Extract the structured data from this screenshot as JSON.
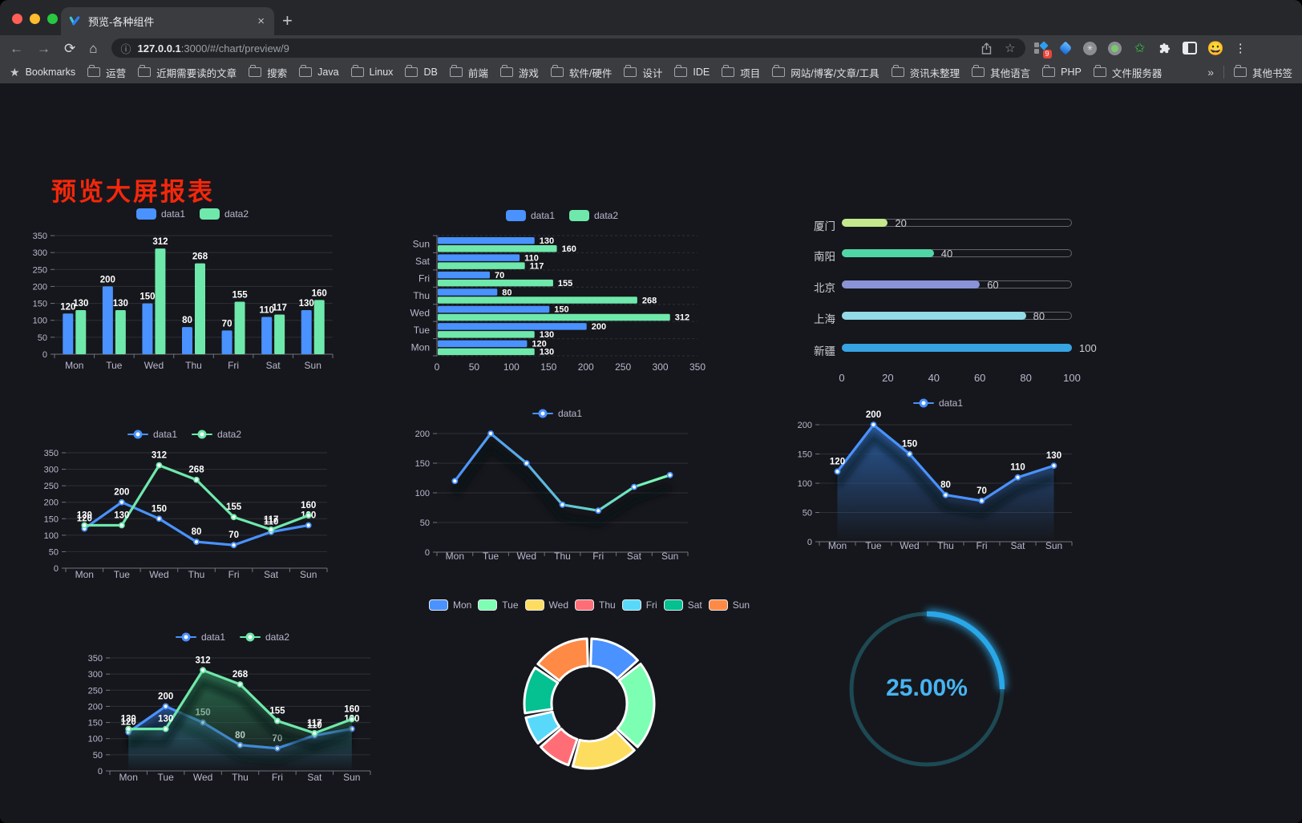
{
  "browser": {
    "tab_title": "预览-各种组件",
    "url_host": "127.0.0.1",
    "url_rest": ":3000/#/chart/preview/9",
    "bookmarks_label": "Bookmarks",
    "bookmarks": [
      "运营",
      "近期需要读的文章",
      "搜索",
      "Java",
      "Linux",
      "DB",
      "前端",
      "游戏",
      "软件/硬件",
      "设计",
      "IDE",
      "项目",
      "网站/博客/文章/工具",
      "资讯未整理",
      "其他语言",
      "PHP",
      "文件服务器"
    ],
    "other_bookmarks": "其他书签",
    "extension_badge": "9",
    "icons": {
      "close": "×",
      "new_tab": "+",
      "back": "←",
      "forward": "→",
      "reload": "⟳",
      "home": "⌂",
      "info": "ⓘ",
      "star": "☆",
      "bookmarks_star": "★",
      "overflow": "»",
      "menu": "⋮",
      "asterisk": "✳",
      "avatar": "😀"
    }
  },
  "page": {
    "title": "预览大屏报表",
    "title_color": "#f5270b"
  },
  "chart_data": [
    {
      "id": "bar-vertical",
      "type": "bar",
      "categories": [
        "Mon",
        "Tue",
        "Wed",
        "Thu",
        "Fri",
        "Sat",
        "Sun"
      ],
      "series": [
        {
          "name": "data1",
          "color": "#4992ff",
          "values": [
            120,
            200,
            150,
            80,
            70,
            110,
            130
          ]
        },
        {
          "name": "data2",
          "color": "#6fe8ab",
          "values": [
            130,
            130,
            312,
            268,
            155,
            117,
            160
          ]
        }
      ],
      "ylim": [
        0,
        350
      ],
      "ytick": 50,
      "legend_position": "top",
      "grid": true
    },
    {
      "id": "bar-horizontal",
      "type": "hbar",
      "categories": [
        "Mon",
        "Tue",
        "Wed",
        "Thu",
        "Fri",
        "Sat",
        "Sun"
      ],
      "axis_reversed": true,
      "series": [
        {
          "name": "data1",
          "color": "#4992ff",
          "values": [
            120,
            200,
            150,
            80,
            70,
            110,
            130
          ]
        },
        {
          "name": "data2",
          "color": "#6fe8ab",
          "values": [
            130,
            130,
            312,
            268,
            155,
            117,
            160
          ]
        }
      ],
      "xlim": [
        0,
        350
      ],
      "xticks": [
        0,
        50,
        100,
        150,
        200,
        250,
        300,
        350
      ],
      "legend_position": "top"
    },
    {
      "id": "progress",
      "type": "bar",
      "subtype": "progress-list",
      "items": [
        {
          "label": "厦门",
          "value": 20,
          "color": "#c3e88d"
        },
        {
          "label": "南阳",
          "value": 40,
          "color": "#50d6a5"
        },
        {
          "label": "北京",
          "value": 60,
          "color": "#8a92d8"
        },
        {
          "label": "上海",
          "value": 80,
          "color": "#93dbe6"
        },
        {
          "label": "新疆",
          "value": 100,
          "color": "#36a3e2"
        }
      ],
      "max": 100,
      "xticks": [
        0,
        20,
        40,
        60,
        80,
        100
      ]
    },
    {
      "id": "line-dual",
      "type": "line",
      "categories": [
        "Mon",
        "Tue",
        "Wed",
        "Thu",
        "Fri",
        "Sat",
        "Sun"
      ],
      "series": [
        {
          "name": "data1",
          "color": "#4992ff",
          "values": [
            120,
            200,
            150,
            80,
            70,
            110,
            130
          ]
        },
        {
          "name": "data2",
          "color": "#6fe8ab",
          "values": [
            130,
            130,
            312,
            268,
            155,
            117,
            160
          ]
        }
      ],
      "ylim": [
        0,
        350
      ],
      "ytick": 50,
      "point_labels": true,
      "legend_position": "top"
    },
    {
      "id": "line-gradient",
      "type": "line",
      "categories": [
        "Mon",
        "Tue",
        "Wed",
        "Thu",
        "Fri",
        "Sat",
        "Sun"
      ],
      "series": [
        {
          "name": "data1",
          "color": "#4992ff",
          "gradient": [
            "#4992ff",
            "#5fc0d8",
            "#7cffb2"
          ],
          "values": [
            120,
            200,
            150,
            80,
            70,
            110,
            130
          ]
        }
      ],
      "ylim": [
        0,
        200
      ],
      "ytick": 50,
      "point_labels": false,
      "shadow": true,
      "legend_position": "top"
    },
    {
      "id": "area-single",
      "type": "area",
      "categories": [
        "Mon",
        "Tue",
        "Wed",
        "Thu",
        "Fri",
        "Sat",
        "Sun"
      ],
      "series": [
        {
          "name": "data1",
          "color": "#4992ff",
          "area": "#2b5d9e",
          "values": [
            120,
            200,
            150,
            80,
            70,
            110,
            130
          ]
        }
      ],
      "ylim": [
        0,
        200
      ],
      "ytick": 50,
      "point_labels": true,
      "shadow": true,
      "legend_position": "top"
    },
    {
      "id": "area-dual",
      "type": "area",
      "categories": [
        "Mon",
        "Tue",
        "Wed",
        "Thu",
        "Fri",
        "Sat",
        "Sun"
      ],
      "series": [
        {
          "name": "data1",
          "color": "#4992ff",
          "area": "#27508c",
          "values": [
            120,
            200,
            150,
            80,
            70,
            110,
            130
          ]
        },
        {
          "name": "data2",
          "color": "#6fe8ab",
          "area": "#2a6e4e",
          "values": [
            130,
            130,
            312,
            268,
            155,
            117,
            160
          ]
        }
      ],
      "ylim": [
        0,
        350
      ],
      "ytick": 50,
      "point_labels": true,
      "shadow": true,
      "legend_position": "top"
    },
    {
      "id": "pie-donut",
      "type": "pie",
      "categories": [
        "Mon",
        "Tue",
        "Wed",
        "Thu",
        "Fri",
        "Sat",
        "Sun"
      ],
      "values": [
        120,
        200,
        150,
        80,
        70,
        110,
        130
      ],
      "colors": [
        "#4992ff",
        "#7cffb2",
        "#fddd60",
        "#ff6e76",
        "#58d9f9",
        "#05c091",
        "#ff8a45"
      ],
      "donut": true,
      "legend_position": "top"
    },
    {
      "id": "gauge",
      "type": "gauge",
      "percent": 25,
      "display": "25.00%",
      "color": "#2aa7e8",
      "track_color": "#1d4953",
      "text_color": "#47b4f2"
    }
  ]
}
